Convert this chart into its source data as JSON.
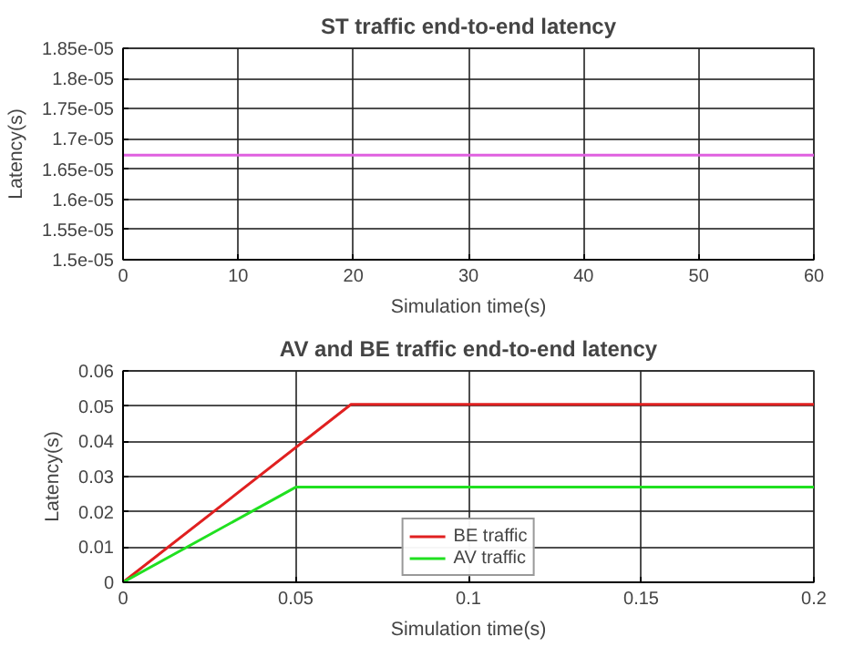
{
  "chart_data": [
    {
      "type": "line",
      "title": "ST traffic end-to-end latency",
      "xlabel": "Simulation time(s)",
      "ylabel": "Latency(s)",
      "x": [
        0,
        60
      ],
      "series": [
        {
          "color": "#e060e0",
          "values": [
            1.673e-05,
            1.673e-05
          ]
        }
      ],
      "xlim": [
        0,
        60
      ],
      "xticks": [
        0,
        10,
        20,
        30,
        40,
        50,
        60
      ],
      "ylim": [
        1.5e-05,
        1.85e-05
      ],
      "yticks": [
        {
          "value": 1.5e-05,
          "label": "1.5e-05"
        },
        {
          "value": 1.55e-05,
          "label": "1.55e-05"
        },
        {
          "value": 1.6e-05,
          "label": "1.6e-05"
        },
        {
          "value": 1.65e-05,
          "label": "1.65e-05"
        },
        {
          "value": 1.7e-05,
          "label": "1.7e-05"
        },
        {
          "value": 1.75e-05,
          "label": "1.75e-05"
        },
        {
          "value": 1.8e-05,
          "label": "1.8e-05"
        },
        {
          "value": 1.85e-05,
          "label": "1.85e-05"
        }
      ],
      "grid": true,
      "legend": false
    },
    {
      "type": "line",
      "title": "AV and BE traffic end-to-end latency",
      "xlabel": "Simulation time(s)",
      "ylabel": "Latency(s)",
      "series": [
        {
          "name": "BE traffic",
          "color": "#e02020",
          "x": [
            0,
            0.066,
            0.2
          ],
          "values": [
            0,
            0.0505,
            0.0505
          ]
        },
        {
          "name": "AV traffic",
          "color": "#20e020",
          "x": [
            0,
            0.05,
            0.2
          ],
          "values": [
            0,
            0.027,
            0.027
          ]
        }
      ],
      "xlim": [
        0,
        0.2
      ],
      "xticks": [
        0,
        0.05,
        0.1,
        0.15,
        0.2
      ],
      "ylim": [
        0,
        0.06
      ],
      "yticks": [
        0,
        0.01,
        0.02,
        0.03,
        0.04,
        0.05,
        0.06
      ],
      "grid": true,
      "legend": "bottom"
    }
  ]
}
